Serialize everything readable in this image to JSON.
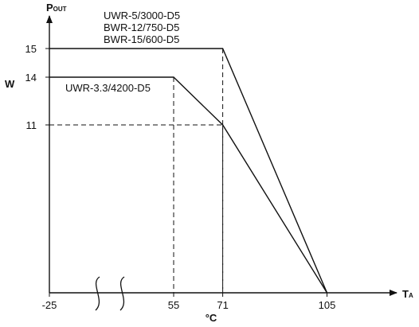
{
  "chart_data": {
    "type": "line",
    "y_axis_title": "P",
    "y_axis_title_sub": "OUT",
    "y_axis_unit": "W",
    "x_axis_title": "T",
    "x_axis_title_sub": "A",
    "x_axis_unit": "°C",
    "x_ticks": [
      -25,
      55,
      71,
      105
    ],
    "y_ticks": [
      11,
      14,
      15
    ],
    "x_axis_break": true,
    "grid": false,
    "series": [
      {
        "name": "UWR-5/3000-D5 BWR-12/750-D5 BWR-15/600-D5",
        "label_lines": [
          "UWR-5/3000-D5",
          "BWR-12/750-D5",
          "BWR-15/600-D5"
        ],
        "points": [
          [
            -25,
            15
          ],
          [
            71,
            15
          ],
          [
            105,
            0
          ]
        ]
      },
      {
        "name": "UWR-3.3/4200-D5",
        "label_lines": [
          "UWR-3.3/4200-D5"
        ],
        "points": [
          [
            -25,
            14
          ],
          [
            55,
            14
          ],
          [
            71,
            11
          ],
          [
            105,
            0
          ]
        ]
      }
    ],
    "guides": [
      {
        "x": 71,
        "y": 15
      },
      {
        "x": 55,
        "y": 14
      },
      {
        "x": 71,
        "y": 11
      }
    ]
  }
}
